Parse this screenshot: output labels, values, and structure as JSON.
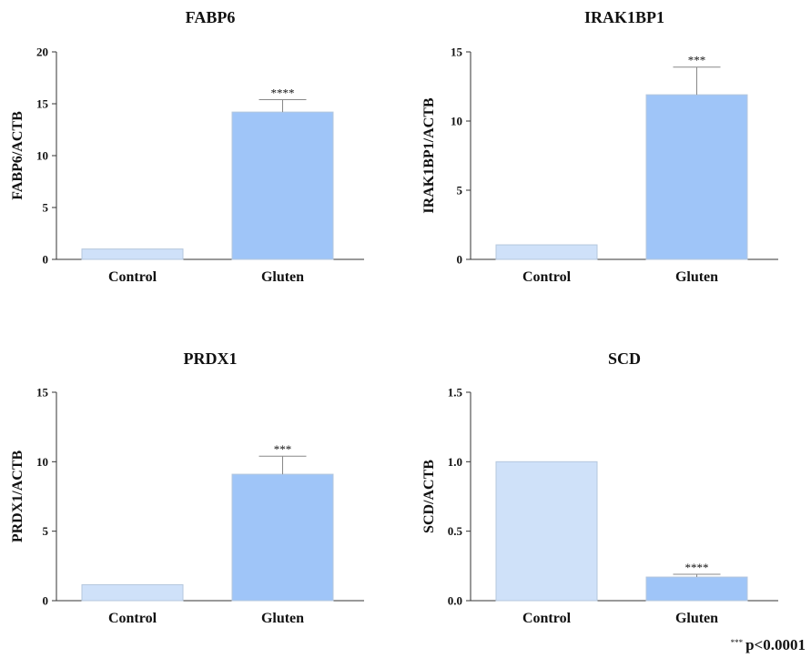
{
  "chart_data": [
    {
      "type": "bar",
      "title": "FABP6",
      "ylabel": "FABP6/ACTB",
      "xlabel": "",
      "categories": [
        "Control",
        "Gluten"
      ],
      "values": [
        1.0,
        14.2
      ],
      "errors": [
        0,
        1.2
      ],
      "significance": [
        "",
        "****"
      ],
      "ylim": [
        0,
        20
      ],
      "yticks": [
        0,
        5,
        10,
        15,
        20
      ],
      "ytick_labels": [
        "0",
        "5",
        "10",
        "15",
        "20"
      ],
      "colors": [
        "#cfe1f9",
        "#9fc5f8"
      ]
    },
    {
      "type": "bar",
      "title": "IRAK1BP1",
      "ylabel": "IRAK1BP1/ACTB",
      "xlabel": "",
      "categories": [
        "Control",
        "Gluten"
      ],
      "values": [
        1.05,
        11.9
      ],
      "errors": [
        0,
        2.0
      ],
      "significance": [
        "",
        "***"
      ],
      "ylim": [
        0,
        15
      ],
      "yticks": [
        0,
        5,
        10,
        15
      ],
      "ytick_labels": [
        "0",
        "5",
        "10",
        "15"
      ],
      "colors": [
        "#cfe1f9",
        "#9fc5f8"
      ]
    },
    {
      "type": "bar",
      "title": "PRDX1",
      "ylabel": "PRDX1/ACTB",
      "xlabel": "",
      "categories": [
        "Control",
        "Gluten"
      ],
      "values": [
        1.15,
        9.1
      ],
      "errors": [
        0,
        1.3
      ],
      "significance": [
        "",
        "***"
      ],
      "ylim": [
        0,
        15
      ],
      "yticks": [
        0,
        5,
        10,
        15
      ],
      "ytick_labels": [
        "0",
        "5",
        "10",
        "15"
      ],
      "colors": [
        "#cfe1f9",
        "#9fc5f8"
      ]
    },
    {
      "type": "bar",
      "title": "SCD",
      "ylabel": "SCD/ACTB",
      "xlabel": "",
      "categories": [
        "Control",
        "Gluten"
      ],
      "values": [
        1.0,
        0.17
      ],
      "errors": [
        0,
        0.02
      ],
      "significance": [
        "",
        "****"
      ],
      "ylim": [
        0,
        1.5
      ],
      "yticks": [
        0,
        0.5,
        1.0,
        1.5
      ],
      "ytick_labels": [
        "0.0",
        "0.5",
        "1.0",
        "1.5"
      ],
      "colors": [
        "#cfe1f9",
        "#9fc5f8"
      ]
    }
  ],
  "footnote": {
    "stars": "***",
    "text": "p<0.0001"
  }
}
